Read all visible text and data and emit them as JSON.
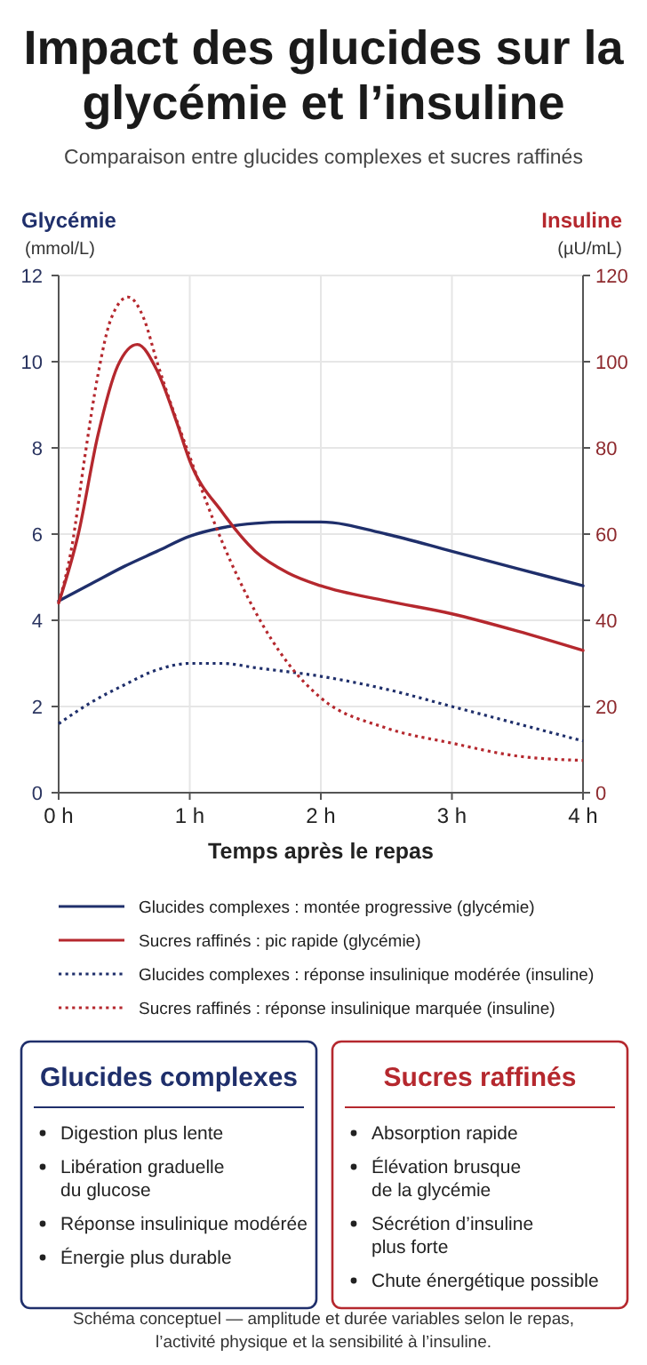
{
  "chart_data": [
    {
      "type": "line",
      "title": "Impact des glucides sur la\nglycémie et l’insuline",
      "subtitle": "Comparaison entre glucides complexes et sucres raffinés",
      "xlabel": "Temps après le repas",
      "ylabel": "Glycémie\n(mmol/L)",
      "y2label": "Insuline\n(µU/mL)",
      "xlim": [
        0,
        4
      ],
      "xticks": [
        {
          "value": 0,
          "label": "0 h"
        },
        {
          "value": 1,
          "label": "1 h"
        },
        {
          "value": 2,
          "label": "2 h"
        },
        {
          "value": 3,
          "label": "3 h"
        },
        {
          "value": 4,
          "label": "4 h"
        }
      ],
      "ylim": [
        0,
        12
      ],
      "yticks": [
        0,
        2,
        4,
        6,
        8,
        10,
        12
      ],
      "y2lim": [
        0,
        120
      ],
      "y2ticks": [
        0,
        20,
        40,
        60,
        80,
        100,
        120
      ],
      "grid": true,
      "legend": "bottom",
      "marker": "none",
      "series": [
        {
          "name": "Glucides complexes : montée progressive (glycémie)",
          "color": "#1f2f6b",
          "line_style": "solid",
          "x": [
            0,
            0.25,
            0.5,
            0.75,
            1,
            1.25,
            1.5,
            1.75,
            2,
            2.5,
            3,
            3.5,
            4
          ],
          "values": [
            4.45,
            4.85,
            5.25,
            5.6,
            5.95,
            6.15,
            6.25,
            6.28,
            6.28,
            6.0,
            5.6,
            5.2,
            4.8
          ]
        },
        {
          "name": "Sucres raffinés : pic rapide (glycémie)",
          "color": "#b5282e",
          "line_style": "solid",
          "x": [
            0,
            0.15,
            0.3,
            0.45,
            0.6,
            0.75,
            0.9,
            1,
            1.25,
            1.5,
            1.75,
            2,
            2.5,
            3,
            3.5,
            4
          ],
          "values": [
            4.4,
            6.0,
            8.3,
            9.9,
            10.4,
            9.8,
            8.6,
            7.7,
            6.5,
            5.6,
            5.1,
            4.8,
            4.45,
            4.15,
            3.75,
            3.3
          ]
        },
        {
          "name": "Glucides complexes : réponse insulinique modérée (insuline)",
          "color": "#1f2f6b",
          "line_style": "dotted",
          "axis": "y2",
          "x": [
            0,
            0.25,
            0.5,
            0.75,
            1,
            1.25,
            1.5,
            2,
            2.5,
            3,
            3.5,
            4
          ],
          "values": [
            16,
            21,
            25,
            28.5,
            30,
            30,
            29,
            27,
            24,
            20,
            16,
            12
          ]
        },
        {
          "name": "Sucres raffinés : réponse insulinique marquée (insuline)",
          "color": "#b5282e",
          "line_style": "dotted",
          "axis": "y2",
          "x": [
            0,
            0.1,
            0.2,
            0.3,
            0.4,
            0.53,
            0.65,
            0.75,
            1,
            1.25,
            1.5,
            1.75,
            2,
            2.5,
            3,
            3.5,
            4
          ],
          "values": [
            44,
            57,
            78,
            97,
            110,
            115,
            110,
            100,
            78,
            58,
            42,
            30,
            22,
            15,
            11.5,
            8.5,
            7.5
          ]
        }
      ],
      "annotations": [
        "Schéma conceptuel — amplitude et durée variables selon le repas,\nl’activité physique et la sensibilité à l’insuline."
      ]
    },
    {
      "type": "other",
      "title": "Glucides complexes",
      "color": "#1f2f6b",
      "annotations": [
        "Digestion plus lente",
        "Libération graduelle\ndu glucose",
        "Réponse insulinique modérée",
        "Énergie plus durable"
      ]
    },
    {
      "type": "other",
      "title": "Sucres raffinés",
      "color": "#b5282e",
      "annotations": [
        "Absorption rapide",
        "Élévation brusque\nde la glycémie",
        "Sécrétion d’insuline\nplus forte",
        "Chute énergétique possible"
      ]
    }
  ]
}
